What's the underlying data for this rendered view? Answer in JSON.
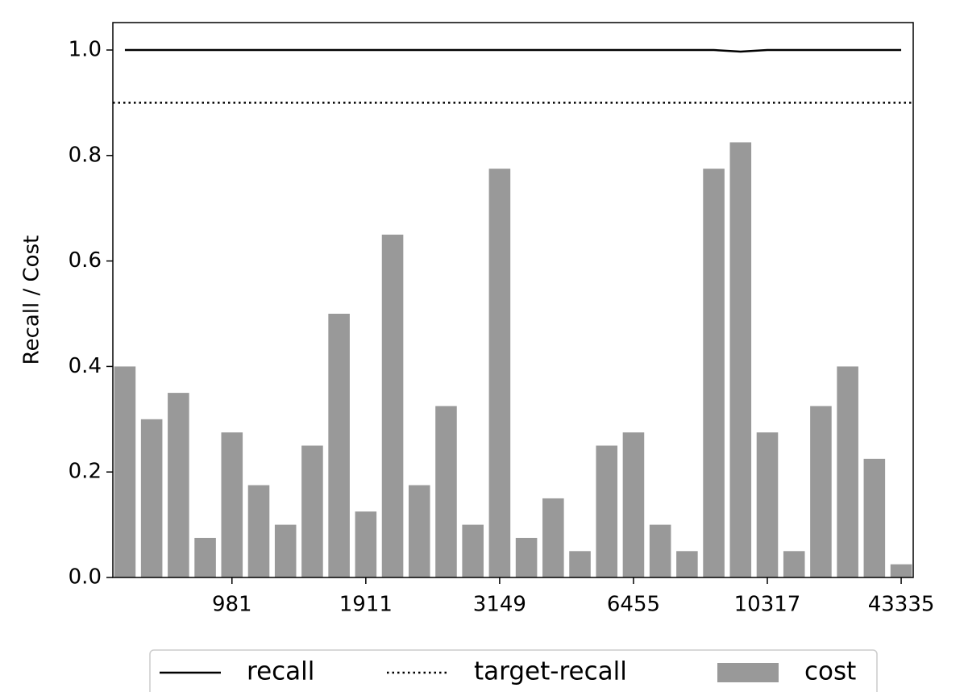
{
  "chart_data": {
    "type": "bar",
    "y_label": "Recall / Cost",
    "categories": [
      null,
      null,
      null,
      null,
      "981",
      null,
      null,
      null,
      null,
      "1911",
      null,
      null,
      null,
      null,
      "3149",
      null,
      null,
      null,
      null,
      "6455",
      null,
      null,
      null,
      null,
      "10317",
      null,
      null,
      null,
      null,
      "43335"
    ],
    "series": [
      {
        "name": "recall",
        "kind": "line",
        "color": "#000000",
        "values": [
          1.0,
          1.0,
          1.0,
          1.0,
          1.0,
          1.0,
          1.0,
          1.0,
          1.0,
          1.0,
          1.0,
          1.0,
          1.0,
          1.0,
          1.0,
          1.0,
          1.0,
          1.0,
          1.0,
          1.0,
          1.0,
          1.0,
          1.0,
          0.997,
          1.0,
          1.0,
          1.0,
          1.0,
          1.0,
          1.0
        ]
      },
      {
        "name": "target-recall",
        "kind": "hline",
        "style": "dotted",
        "color": "#000000",
        "value": 0.9
      },
      {
        "name": "cost",
        "kind": "bar",
        "color": "#999999",
        "values": [
          0.4,
          0.3,
          0.35,
          0.075,
          0.275,
          0.175,
          0.1,
          0.25,
          0.5,
          0.125,
          0.65,
          0.175,
          0.325,
          0.1,
          0.775,
          0.075,
          0.15,
          0.05,
          0.25,
          0.275,
          0.1,
          0.05,
          0.775,
          0.825,
          0.275,
          0.05,
          0.325,
          0.4,
          0.225,
          0.025
        ]
      }
    ],
    "ylim": [
      0,
      1.052
    ],
    "yticks": [
      {
        "value": 0,
        "label": "0.0"
      },
      0.2,
      0.4,
      0.6,
      0.8,
      {
        "value": 1,
        "label": "1.0"
      }
    ],
    "legend": "bottom"
  }
}
